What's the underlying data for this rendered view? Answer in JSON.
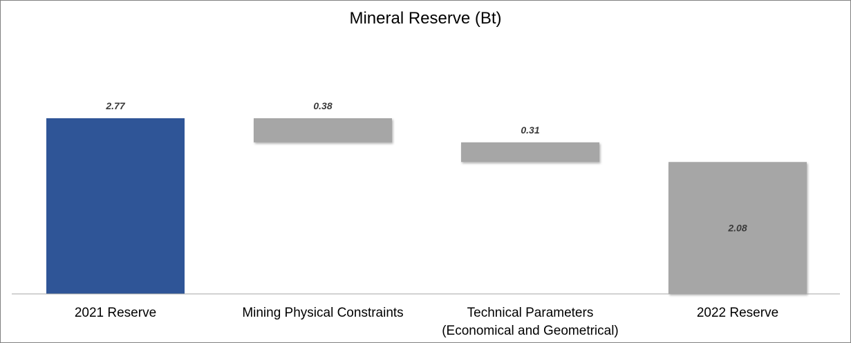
{
  "chart_data": {
    "type": "bar",
    "subtype": "waterfall",
    "title": "Mineral Reserve (Bt)",
    "xlabel": "",
    "ylabel": "",
    "ylim": [
      0,
      3.5
    ],
    "grid": false,
    "legend": "none",
    "categories": [
      "2021 Reserve",
      "Mining Physical Constraints",
      "Technical Parameters (Economical and Geometrical)",
      "2022 Reserve"
    ],
    "category_lines": [
      [
        "2021 Reserve"
      ],
      [
        "Mining Physical Constraints"
      ],
      [
        "Technical Parameters",
        "(Economical and Geometrical)"
      ],
      [
        "2022 Reserve"
      ]
    ],
    "values": [
      2.77,
      -0.38,
      -0.31,
      2.08
    ],
    "bar_kinds": [
      "total",
      "change",
      "change",
      "total"
    ],
    "data_labels": [
      "2.77",
      "0.38",
      "0.31",
      "2.08"
    ],
    "colors": {
      "start_total": "#2f5597",
      "change": "#a6a6a6",
      "end_total": "#a6a6a6",
      "axis": "#a6a6a6"
    }
  }
}
